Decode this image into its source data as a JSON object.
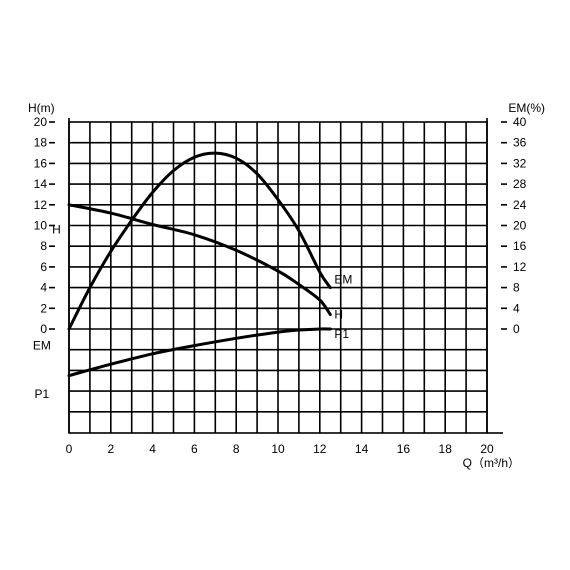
{
  "chart_data": {
    "type": "line",
    "xlabel": "Q（m³/h）",
    "ylabel_left": "H(m)",
    "ylabel_right": "EM(%)",
    "xlim": [
      0,
      20
    ],
    "ylim_left": [
      0,
      20
    ],
    "ylim_right": [
      0,
      40
    ],
    "x_ticks": [
      "0",
      "2",
      "4",
      "6",
      "8",
      "10",
      "12",
      "14",
      "16",
      "18",
      "20"
    ],
    "y_left_ticks": [
      "0",
      "2",
      "4",
      "6",
      "8",
      "10",
      "12",
      "14",
      "16",
      "18",
      "20"
    ],
    "y_right_ticks": [
      "0",
      "4",
      "8",
      "12",
      "16",
      "20",
      "24",
      "28",
      "32",
      "36",
      "40"
    ],
    "grid": true,
    "series": [
      {
        "name": "H",
        "axis": "left",
        "x": [
          0,
          2,
          4,
          6,
          8,
          10,
          11,
          12,
          12.5
        ],
        "y": [
          12,
          11.2,
          10.1,
          9.1,
          7.6,
          5.6,
          4.3,
          2.8,
          1.4
        ]
      },
      {
        "name": "EM",
        "axis": "right",
        "x": [
          0,
          1,
          2,
          3,
          4,
          5,
          6,
          7,
          8,
          9,
          10,
          11,
          12,
          12.5
        ],
        "y": [
          0,
          8,
          15,
          21,
          26.4,
          30.6,
          33.2,
          34,
          33,
          30,
          25,
          19,
          11,
          8
        ]
      },
      {
        "name": "P1",
        "axis": "none",
        "x": [
          0,
          2,
          4,
          6,
          8,
          10,
          11,
          12,
          12.5
        ],
        "y": [
          -4.5,
          -3.4,
          -2.4,
          -1.6,
          -0.9,
          -0.3,
          -0.1,
          0,
          0
        ]
      }
    ],
    "curve_labels": [
      {
        "text": "EM",
        "x": 12.7,
        "y": 4.8
      },
      {
        "text": "H",
        "x": 12.7,
        "y": 1.4
      },
      {
        "text": "P1",
        "x": 12.7,
        "y": -0.5
      }
    ],
    "axis_side_labels": [
      {
        "text": "H",
        "x": -0.6,
        "y": 9.6
      },
      {
        "text": "EM",
        "x": -1.3,
        "y": -1.6
      },
      {
        "text": "P1",
        "x": -1.3,
        "y": -6.3
      }
    ]
  }
}
